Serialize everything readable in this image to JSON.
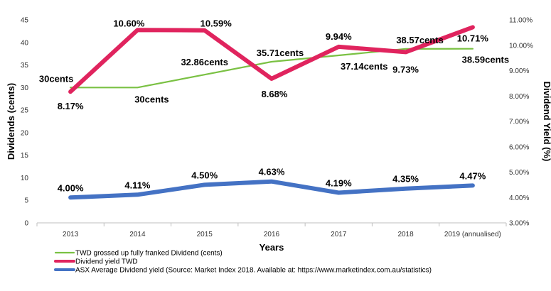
{
  "chart_data": {
    "type": "line",
    "title": "",
    "categories": [
      "2013",
      "2014",
      "2015",
      "2016",
      "2017",
      "2018",
      "2019 (annualised)"
    ],
    "xlabel": "Years",
    "ylabel": "Dividends (cents)",
    "ylabel_right": "Dividend Yield (%)",
    "ylim": [
      0,
      45
    ],
    "yticks": [
      0,
      5,
      10,
      15,
      20,
      25,
      30,
      35,
      40,
      45
    ],
    "ylim_right": [
      3.0,
      11.0
    ],
    "yticks_right": [
      "3.00%",
      "4.00%",
      "5.00%",
      "6.00%",
      "7.00%",
      "8.00%",
      "9.00%",
      "10.00%",
      "11.00%"
    ],
    "grid": false,
    "legend_position": "bottom",
    "series": [
      {
        "name": "TWD grossed up fully franked Dividend (cents)",
        "axis": "left",
        "color": "#7ac143",
        "values": [
          30,
          30,
          32.86,
          35.71,
          37.14,
          38.57,
          38.59
        ],
        "labels": [
          "30cents",
          "30cents",
          "32.86cents",
          "35.71cents",
          "37.14cents",
          "38.57cents",
          "38.59cents"
        ]
      },
      {
        "name": "Dividend yield TWD",
        "axis": "right",
        "color": "#e0245e",
        "values": [
          8.17,
          10.6,
          10.59,
          8.68,
          9.94,
          9.73,
          10.71
        ],
        "labels": [
          "8.17%",
          "10.60%",
          "10.59%",
          "8.68%",
          "9.94%",
          "9.73%",
          "10.71%"
        ]
      },
      {
        "name": "ASX Average Dividend yield (Source: Market Index 2018. Available at: https://www.marketindex.com.au/statistics)",
        "axis": "right",
        "color": "#4472c4",
        "values": [
          4.0,
          4.11,
          4.5,
          4.63,
          4.19,
          4.35,
          4.47
        ],
        "labels": [
          "4.00%",
          "4.11%",
          "4.50%",
          "4.63%",
          "4.19%",
          "4.35%",
          "4.47%"
        ]
      }
    ]
  }
}
